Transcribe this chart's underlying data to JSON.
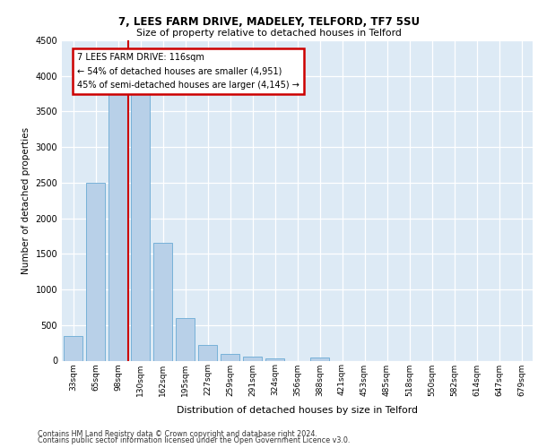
{
  "title1": "7, LEES FARM DRIVE, MADELEY, TELFORD, TF7 5SU",
  "title2": "Size of property relative to detached houses in Telford",
  "xlabel": "Distribution of detached houses by size in Telford",
  "ylabel": "Number of detached properties",
  "footer1": "Contains HM Land Registry data © Crown copyright and database right 2024.",
  "footer2": "Contains public sector information licensed under the Open Government Licence v3.0.",
  "categories": [
    "33sqm",
    "65sqm",
    "98sqm",
    "130sqm",
    "162sqm",
    "195sqm",
    "227sqm",
    "259sqm",
    "291sqm",
    "324sqm",
    "356sqm",
    "388sqm",
    "421sqm",
    "453sqm",
    "485sqm",
    "518sqm",
    "550sqm",
    "582sqm",
    "614sqm",
    "647sqm",
    "679sqm"
  ],
  "values": [
    350,
    2500,
    3750,
    3750,
    1650,
    600,
    225,
    100,
    60,
    35,
    0,
    50,
    0,
    0,
    0,
    0,
    0,
    0,
    0,
    0,
    0
  ],
  "bar_color": "#b8d0e8",
  "bar_edge_color": "#6aaad4",
  "vline_pos": 2.45,
  "vline_color": "#cc0000",
  "annotation_text_line1": "7 LEES FARM DRIVE: 116sqm",
  "annotation_text_line2": "← 54% of detached houses are smaller (4,951)",
  "annotation_text_line3": "45% of semi-detached houses are larger (4,145) →",
  "annotation_border_color": "#cc0000",
  "ylim": [
    0,
    4500
  ],
  "yticks": [
    0,
    500,
    1000,
    1500,
    2000,
    2500,
    3000,
    3500,
    4000,
    4500
  ],
  "bg_color": "#ddeaf5",
  "grid_color": "#ffffff",
  "fig_bg": "#ffffff"
}
